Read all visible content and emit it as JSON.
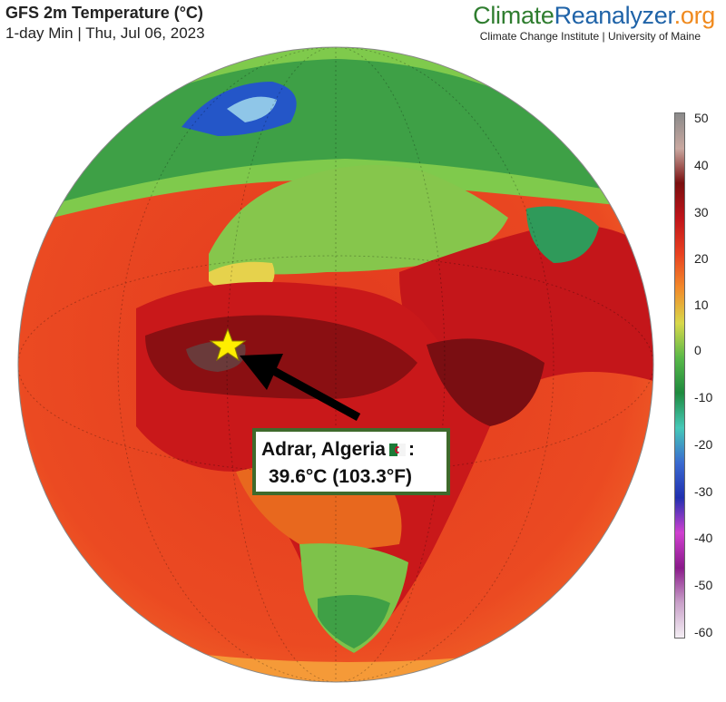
{
  "header": {
    "title": "GFS 2m Temperature (°C)",
    "subtitle": "1-day Min | Thu, Jul 06, 2023"
  },
  "brand": {
    "part1": "Climate",
    "part2": "Reanalyzer",
    "part3": ".org",
    "tagline": "Climate Change Institute | University of Maine"
  },
  "annotation": {
    "location": "Adrar, Algeria",
    "value": "39.6°C (103.3°F)",
    "marker": "star-marker",
    "pointer": "arrow"
  },
  "colorbar": {
    "ticks": [
      "50",
      "40",
      "30",
      "20",
      "10",
      "0",
      "-10",
      "-20",
      "-30",
      "-40",
      "-50",
      "-60"
    ],
    "colors": [
      "#8a8a8a",
      "#c9a8a0",
      "#7a0f0f",
      "#c0141a",
      "#e84020",
      "#f28a2a",
      "#d8d84a",
      "#58b848",
      "#1e8a3e",
      "#45c8b8",
      "#3a6ad0",
      "#2030b0",
      "#d040d0",
      "#8a1a8a",
      "#c8a0c8",
      "#f4eef4"
    ]
  },
  "map": {
    "colors": {
      "ocean_hot": "#e83a1e",
      "land_hot": "#c2161a",
      "desert_max": "#7a0e12",
      "mild": "#f28a2a",
      "temperate": "#58b848",
      "cool": "#1e8a3e",
      "cold": "#3a6ad0"
    }
  }
}
